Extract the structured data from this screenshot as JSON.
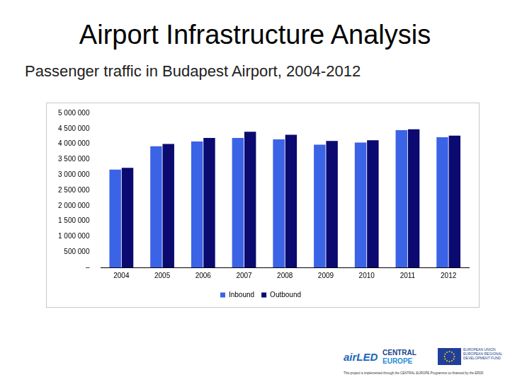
{
  "slide": {
    "title": "Airport Infrastructure Analysis"
  },
  "chart_data": {
    "type": "bar",
    "title": "Passenger traffic in Budapest Airport, 2004-2012",
    "categories": [
      "2004",
      "2005",
      "2006",
      "2007",
      "2008",
      "2009",
      "2010",
      "2011",
      "2012"
    ],
    "series": [
      {
        "name": "Inbound",
        "color": "#3b63e6",
        "values": [
          3170000,
          3930000,
          4080000,
          4200000,
          4150000,
          3980000,
          4050000,
          4450000,
          4220000
        ]
      },
      {
        "name": "Outbound",
        "color": "#0a0a70",
        "values": [
          3230000,
          4000000,
          4200000,
          4400000,
          4300000,
          4100000,
          4120000,
          4480000,
          4270000
        ]
      }
    ],
    "ylim": [
      0,
      5000000
    ],
    "yticks": [
      {
        "value": 0,
        "label": "–"
      },
      {
        "value": 500000,
        "label": "500 000"
      },
      {
        "value": 1000000,
        "label": "1 000 000"
      },
      {
        "value": 1500000,
        "label": "1 500 000"
      },
      {
        "value": 2000000,
        "label": "2 000 000"
      },
      {
        "value": 2500000,
        "label": "2 500 000"
      },
      {
        "value": 3000000,
        "label": "3 000 000"
      },
      {
        "value": 3500000,
        "label": "3 500 000"
      },
      {
        "value": 4000000,
        "label": "4 000 000"
      },
      {
        "value": 4500000,
        "label": "4 500 000"
      },
      {
        "value": 5000000,
        "label": "5 000 000"
      }
    ],
    "grid": false,
    "legend": "bottom"
  },
  "footer": {
    "logos": [
      "airLED",
      "CENTRAL",
      "EUROPE",
      "EUROPEAN UNION",
      "EUROPEAN REGIONAL DEVELOPMENT FUND"
    ],
    "note": "This project is implemented through the CENTRAL EUROPE Programme co-financed by the ERDF."
  }
}
